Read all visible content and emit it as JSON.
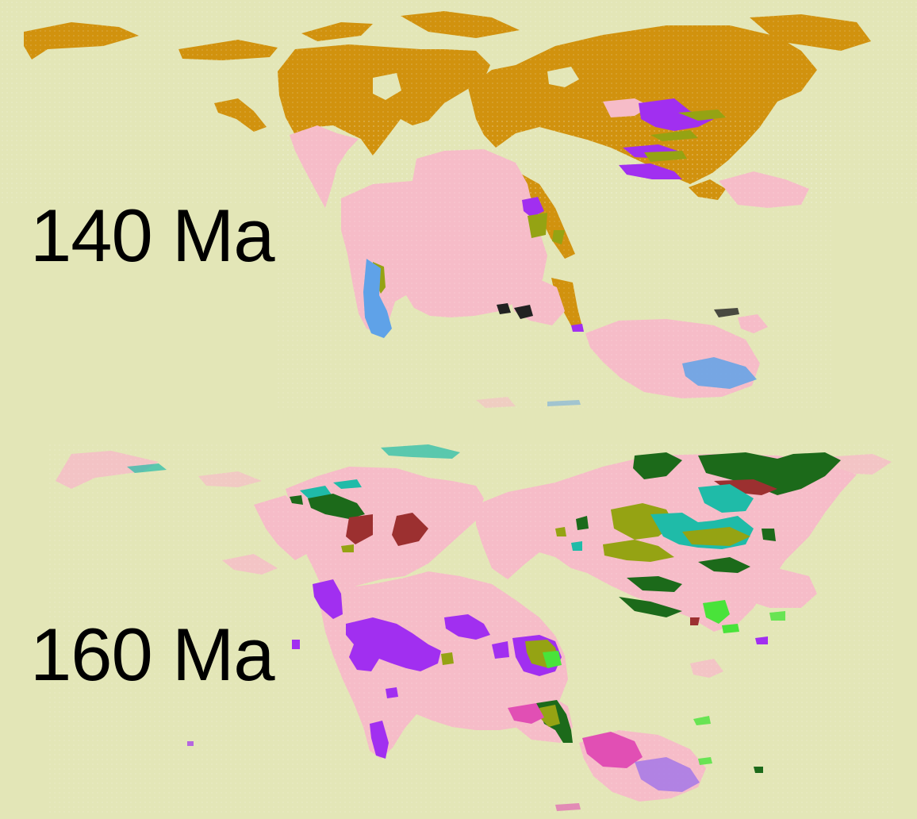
{
  "panels": [
    {
      "id": "top",
      "age_label": "140 Ma"
    },
    {
      "id": "bottom",
      "age_label": "160 Ma"
    }
  ],
  "colors": {
    "background": "#e3e6b7",
    "land_pink": "#f6bcc8",
    "ochre": "#d1920e",
    "purple": "#a12ff0",
    "olive": "#95a313",
    "light_blue": "#5fa2e8",
    "dark_green": "#1c6a1a",
    "teal": "#1fbba8",
    "brown_red": "#9c3030",
    "bright_green": "#49e33a",
    "magenta": "#e14fb4",
    "black": "#222222"
  }
}
